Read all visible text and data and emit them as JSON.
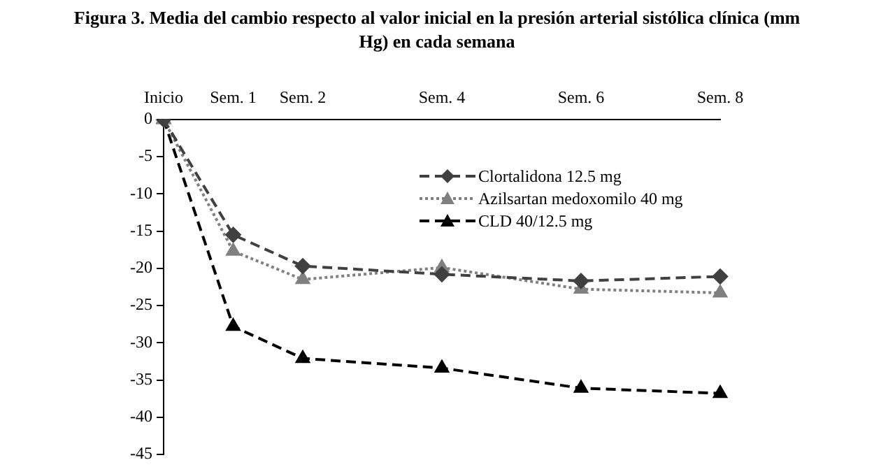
{
  "chart_data": {
    "type": "line",
    "title": "Figura 3. Media del cambio respecto al valor inicial en la presión arterial sistólica clínica (mm Hg) en cada semana",
    "categories": [
      "Inicio",
      "Sem. 1",
      "Sem. 2",
      null,
      "Sem. 4",
      null,
      "Sem. 6",
      null,
      "Sem. 8"
    ],
    "series": [
      {
        "name": "Clortalidona 12.5 mg",
        "color": "#404040",
        "marker": "diamond",
        "line_style": "dashed",
        "values": [
          0,
          -15.5,
          -19.7,
          null,
          -20.8,
          null,
          -21.7,
          null,
          -21.1
        ]
      },
      {
        "name": "Azilsartan medoxomilo 40 mg",
        "color": "#808080",
        "marker": "triangle",
        "line_style": "dotted",
        "values": [
          0,
          -17.7,
          -21.5,
          null,
          -19.9,
          null,
          -22.8,
          null,
          -23.3
        ]
      },
      {
        "name": "CLD 40/12.5 mg",
        "color": "#000000",
        "marker": "triangle",
        "line_style": "dashed",
        "values": [
          0,
          -27.8,
          -32.1,
          null,
          -33.4,
          null,
          -36.1,
          null,
          -36.8
        ]
      }
    ],
    "ylim": [
      -45,
      0
    ],
    "yticks": [
      0,
      -5,
      -10,
      -15,
      -20,
      -25,
      -30,
      -35,
      -40,
      -45
    ],
    "grid": false,
    "legend": "top right"
  }
}
